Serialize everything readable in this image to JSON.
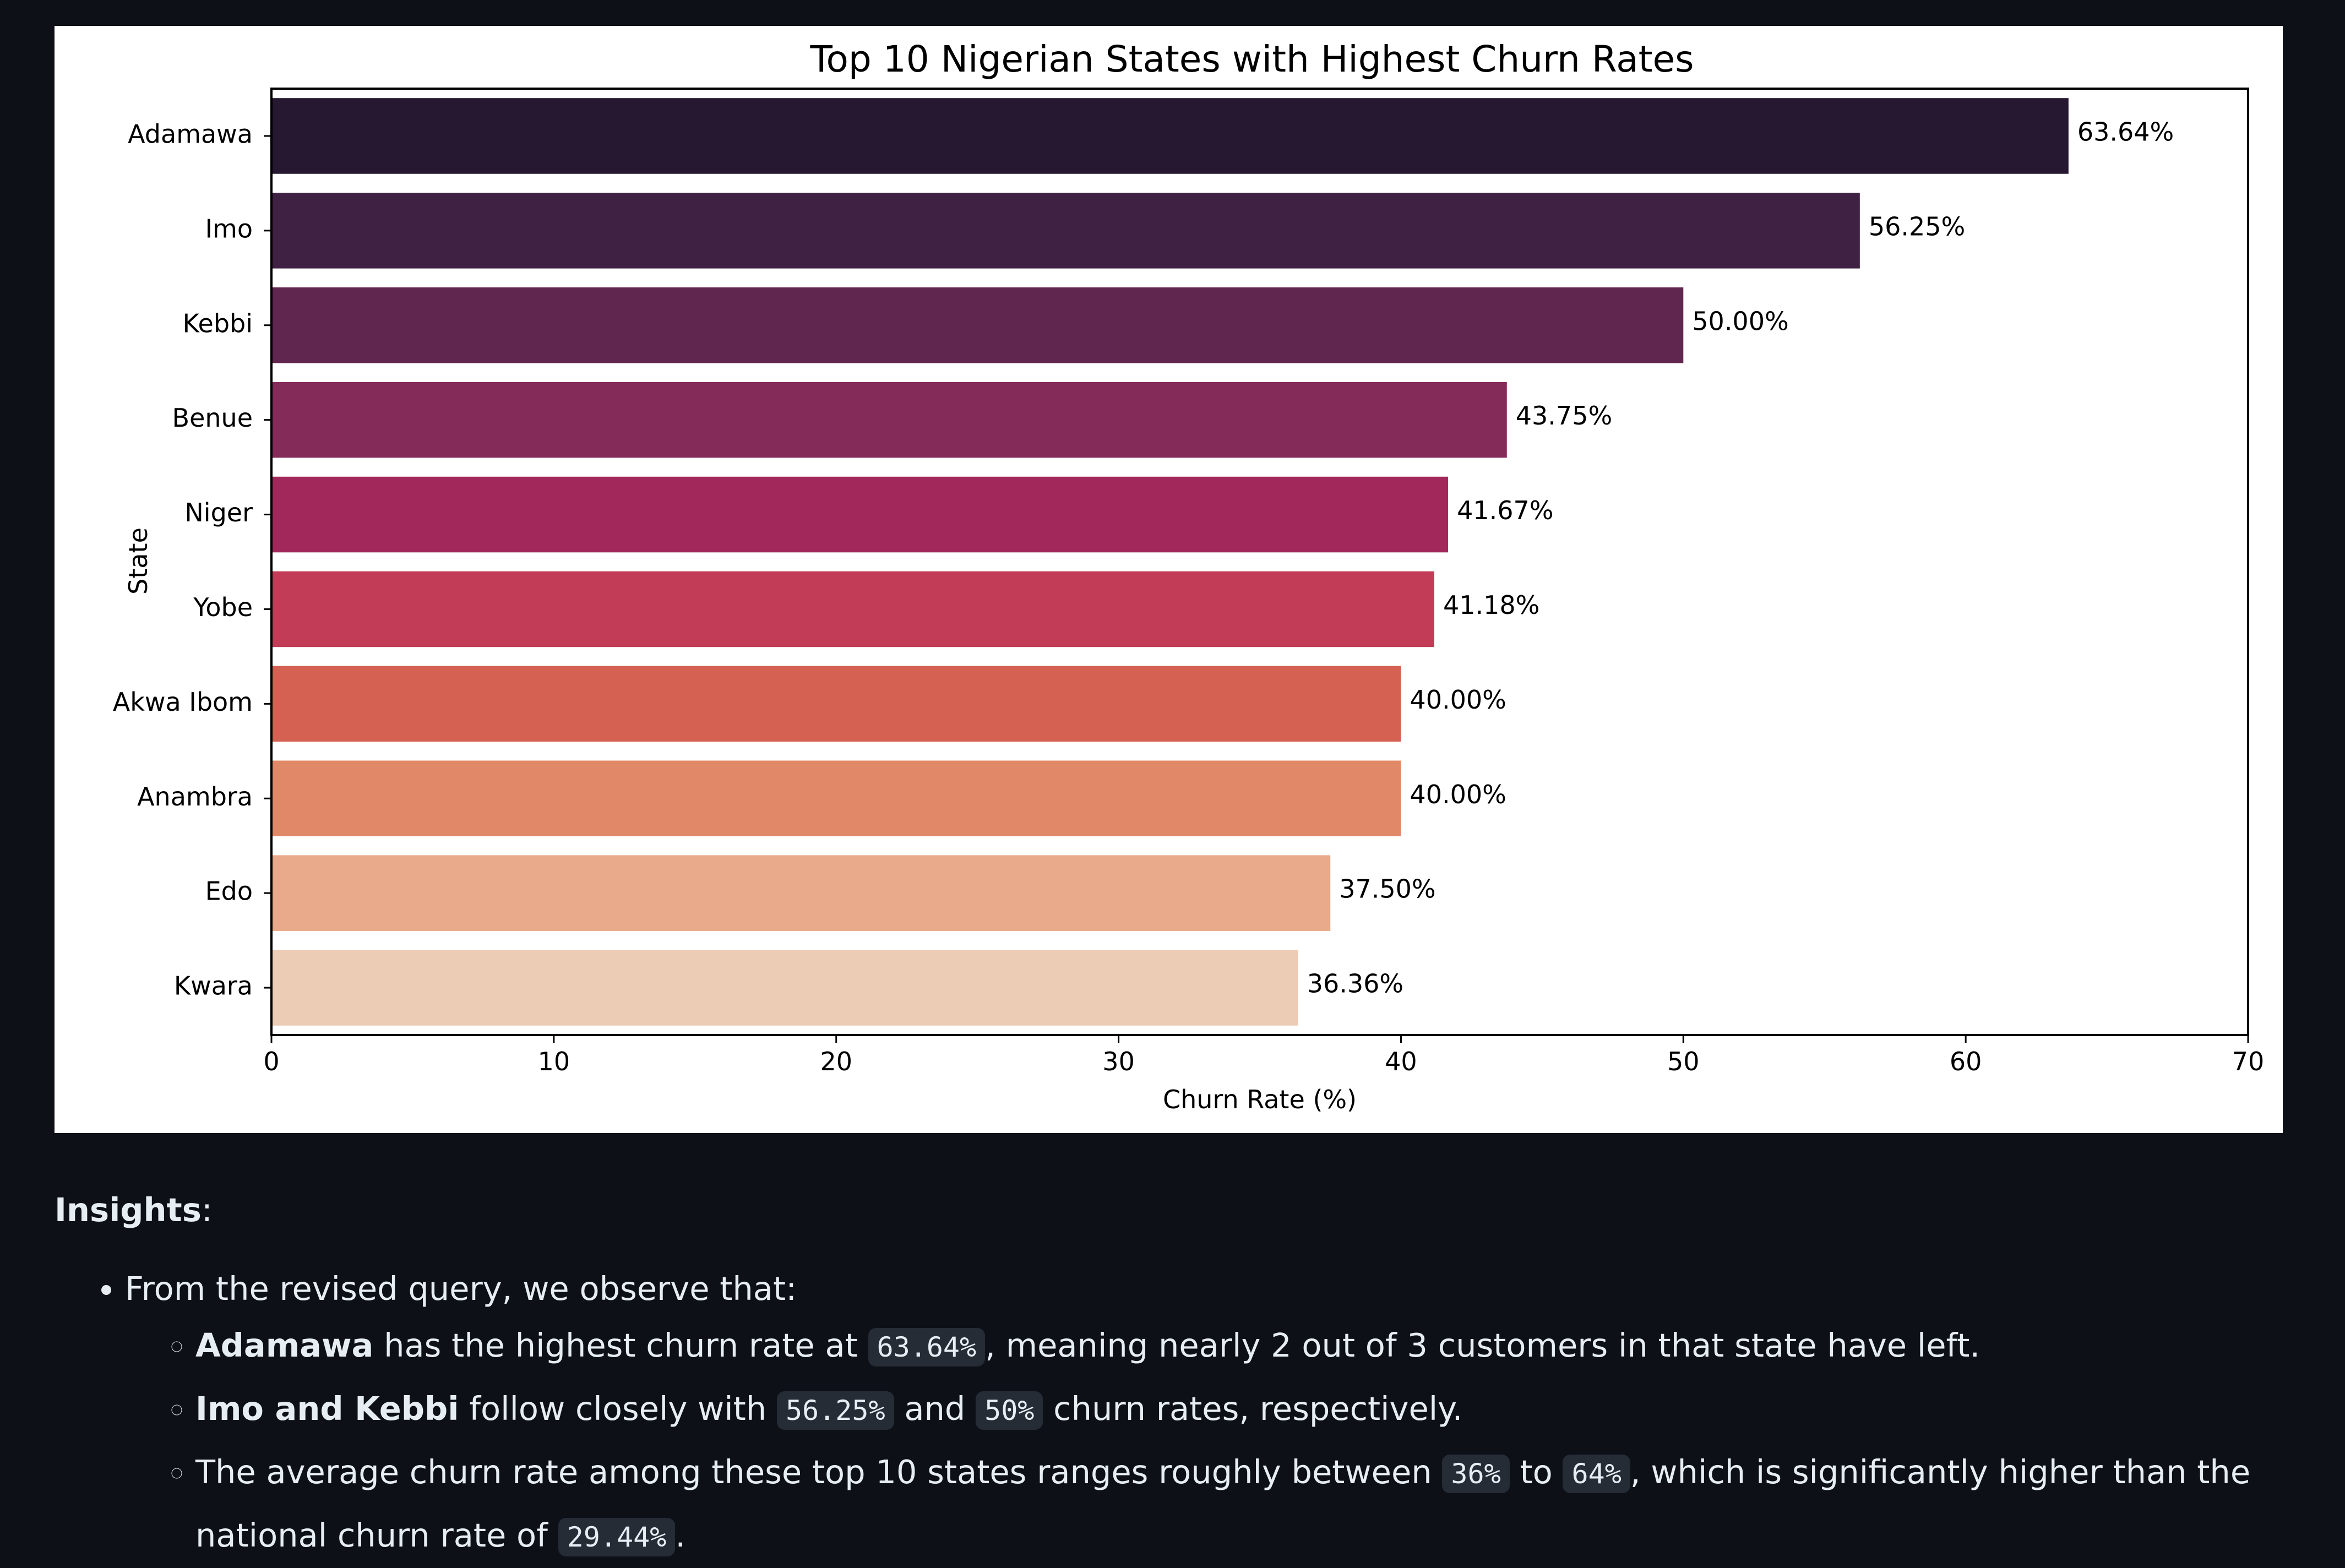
{
  "chart_data": {
    "type": "bar",
    "orientation": "horizontal",
    "title": "Top 10 Nigerian States with Highest Churn Rates",
    "xlabel": "Churn Rate (%)",
    "ylabel": "State",
    "xlim": [
      0,
      70
    ],
    "xticks": [
      0,
      10,
      20,
      30,
      40,
      50,
      60,
      70
    ],
    "grid": false,
    "legend": "none",
    "categories": [
      "Adamawa",
      "Imo",
      "Kebbi",
      "Benue",
      "Niger",
      "Yobe",
      "Akwa Ibom",
      "Anambra",
      "Edo",
      "Kwara"
    ],
    "values": [
      63.64,
      56.25,
      50.0,
      43.75,
      41.67,
      41.18,
      40.0,
      40.0,
      37.5,
      36.36
    ],
    "data_labels": [
      "63.64%",
      "56.25%",
      "50.00%",
      "43.75%",
      "41.67%",
      "41.18%",
      "40.00%",
      "40.00%",
      "37.50%",
      "36.36%"
    ],
    "colors": [
      "#251830",
      "#3f2143",
      "#61264f",
      "#842b59",
      "#a2275b",
      "#c23b57",
      "#d56152",
      "#e08867",
      "#e8aa8a",
      "#ecccb5"
    ]
  },
  "insights": {
    "heading": "Insights",
    "heading_suffix": ":",
    "intro": "From the revised query, we observe that:",
    "items": [
      {
        "strong": "Adamawa",
        "t1": " has the highest churn rate at ",
        "c1": "63.64%",
        "t2": ", meaning nearly 2 out of 3 customers in that state have left."
      },
      {
        "strong": "Imo and Kebbi",
        "t1": " follow closely with ",
        "c1": "56.25%",
        "t2": " and ",
        "c2": "50%",
        "t3": " churn rates, respectively."
      },
      {
        "t0": "The average churn rate among these top 10 states ranges roughly between ",
        "c1": "36%",
        "t1": " to ",
        "c2": "64%",
        "t2": ", which is significantly higher than the national churn rate of ",
        "c3": "29.44%",
        "t3": "."
      }
    ]
  }
}
